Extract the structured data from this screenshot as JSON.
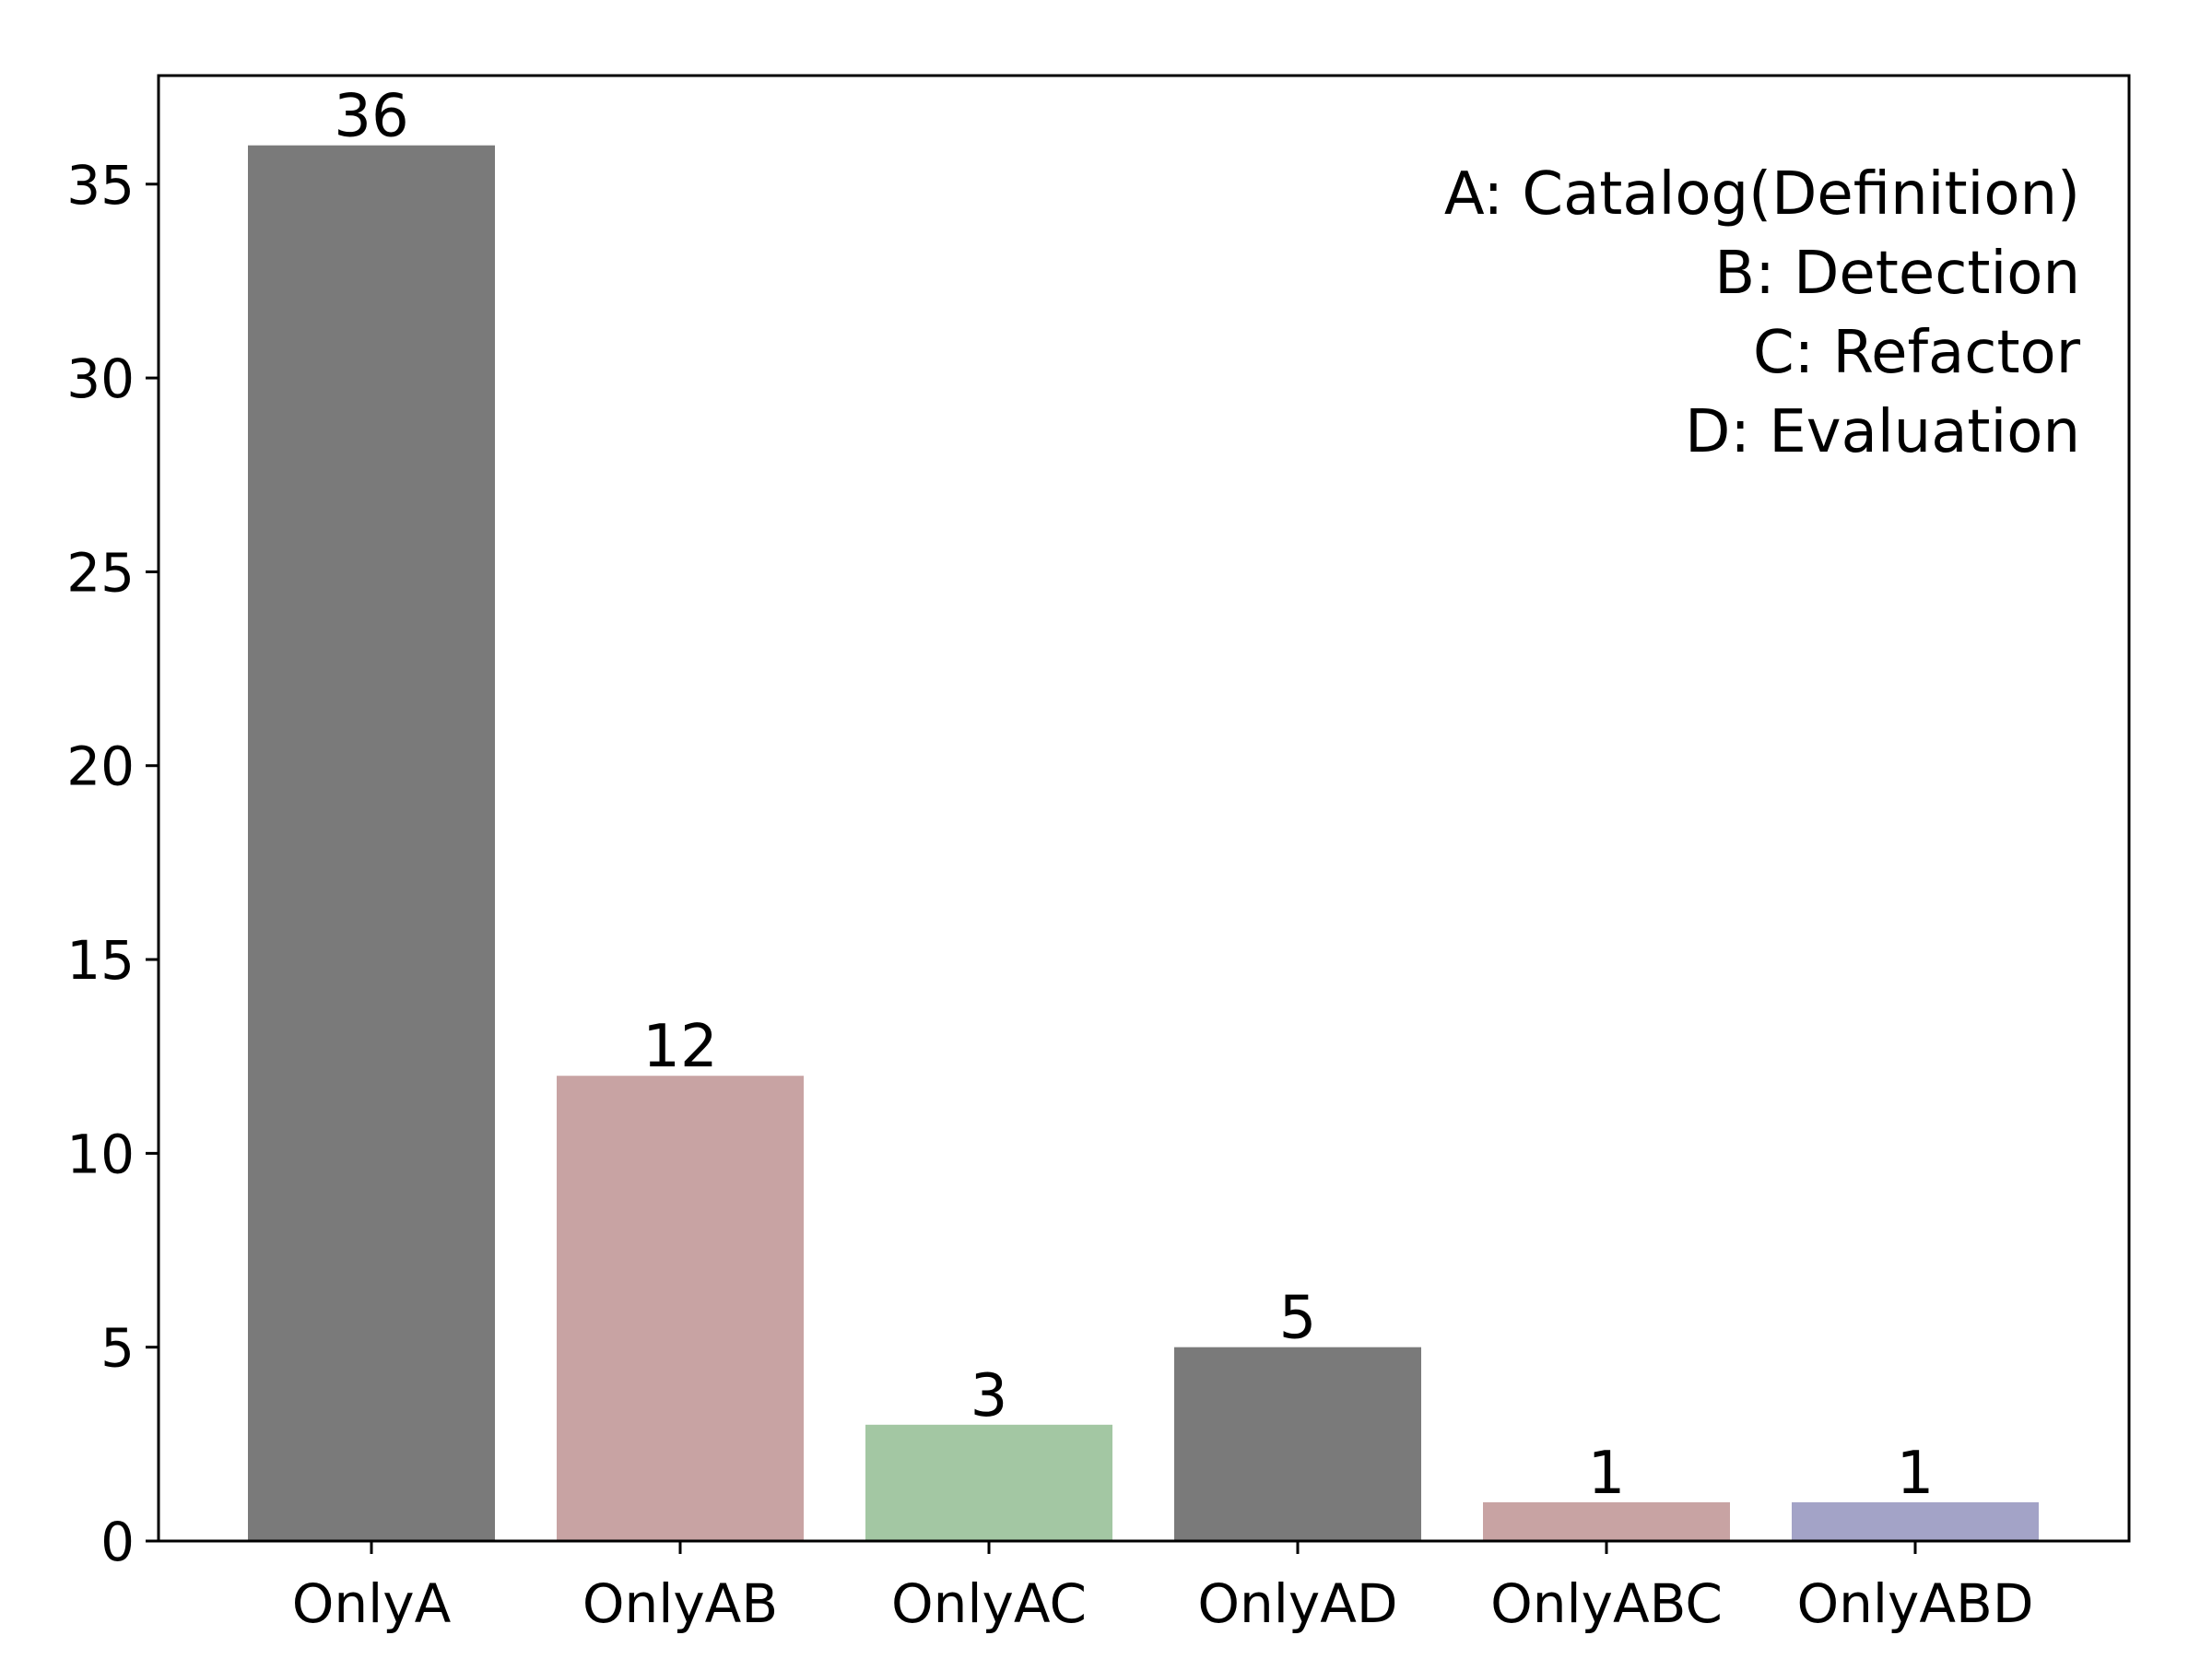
{
  "chart_data": {
    "type": "bar",
    "categories": [
      "OnlyA",
      "OnlyAB",
      "OnlyAC",
      "OnlyAD",
      "OnlyABC",
      "OnlyABD"
    ],
    "values": [
      36,
      12,
      3,
      5,
      1,
      1
    ],
    "bar_colors": [
      "#7a7a7a",
      "#c8a3a3",
      "#a3c7a3",
      "#7a7a7a",
      "#c8a3a3",
      "#a3a3c7"
    ],
    "title": "",
    "xlabel": "",
    "ylabel": "",
    "ylim": [
      0,
      37.8
    ],
    "yticks": [
      0,
      5,
      10,
      15,
      20,
      25,
      30,
      35
    ],
    "annotation": [
      "A: Catalog(Definition)",
      "B: Detection",
      "C: Refactor",
      "D: Evaluation"
    ],
    "annotation_placement": "top-right",
    "grid": false
  }
}
